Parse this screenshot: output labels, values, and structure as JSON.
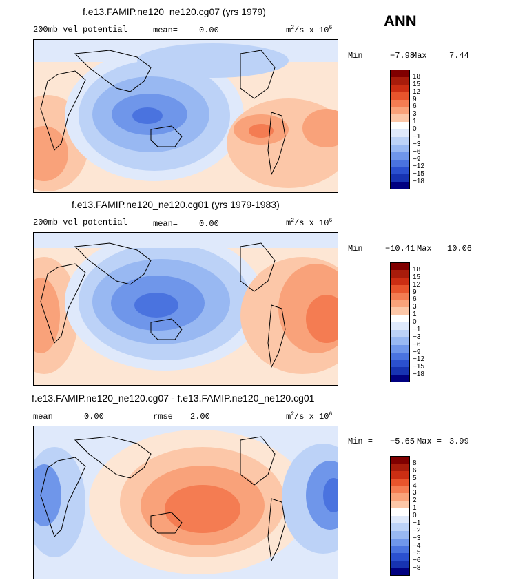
{
  "season": "ANN",
  "units_base": "m",
  "units_exp": "2",
  "units_mid": "/s x 10",
  "units_scale_exp": "6",
  "colors": {
    "positive": [
      "#fde6d4",
      "#fcc7a8",
      "#f9a27a",
      "#f47c52",
      "#e8542c",
      "#cc2e13",
      "#a81c0b",
      "#800000"
    ],
    "negative": [
      "#dfe9fb",
      "#bcd2f7",
      "#98b8f2",
      "#6f96ea",
      "#4a73df",
      "#2b50cf",
      "#1733b2",
      "#000080"
    ],
    "zero": "#ffffff"
  },
  "chart_data": [
    {
      "type": "heatmap",
      "title": "f.e13.FAMIP.ne120_ne120.cg07 (yrs 1979)",
      "field_label": "200mb vel potential",
      "stat_label": "mean=",
      "stat_value": "0.00",
      "min_label": "Min =",
      "min": "−7.98",
      "max_label": "Max =",
      "max": "7.44",
      "colorbar_levels": [
        "18",
        "15",
        "12",
        "9",
        "6",
        "3",
        "1",
        "0",
        "−1",
        "−3",
        "−6",
        "−9",
        "−12",
        "−15",
        "−18"
      ]
    },
    {
      "type": "heatmap",
      "title": "f.e13.FAMIP.ne120_ne120.cg01 (yrs 1979-1983)",
      "field_label": "200mb vel potential",
      "stat_label": "mean=",
      "stat_value": "0.00",
      "min_label": "Min =",
      "min": "−10.41",
      "max_label": "Max =",
      "max": "10.06",
      "colorbar_levels": [
        "18",
        "15",
        "12",
        "9",
        "6",
        "3",
        "1",
        "0",
        "−1",
        "−3",
        "−6",
        "−9",
        "−12",
        "−15",
        "−18"
      ]
    },
    {
      "type": "heatmap",
      "title": "f.e13.FAMIP.ne120_ne120.cg07 - f.e13.FAMIP.ne120_ne120.cg01",
      "field_label": "mean =",
      "stat_label": "0.00",
      "rmse_label": "rmse =",
      "rmse_value": "2.00",
      "min_label": "Min =",
      "min": "−5.65",
      "max_label": "Max =",
      "max": "3.99",
      "colorbar_levels": [
        "8",
        "6",
        "5",
        "4",
        "3",
        "2",
        "1",
        "0",
        "−1",
        "−2",
        "−3",
        "−4",
        "−5",
        "−6",
        "−8"
      ]
    }
  ]
}
